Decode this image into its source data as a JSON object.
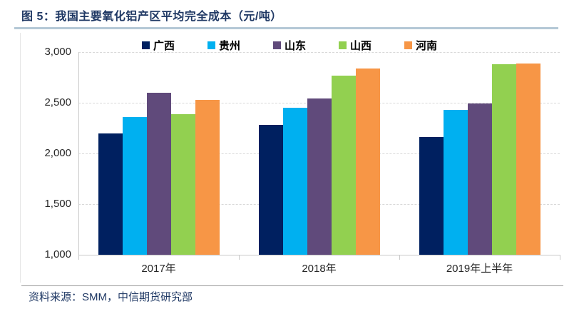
{
  "header": {
    "title": "图 5：我国主要氧化铝产区平均完全成本（元/吨）"
  },
  "footer": {
    "source": "资料来源：SMM，中信期货研究部"
  },
  "chart_data": {
    "type": "bar",
    "title": "我国主要氧化铝产区平均完全成本（元/吨）",
    "categories": [
      "2017年",
      "2018年",
      "2019年上半年"
    ],
    "series": [
      {
        "name": "广西",
        "color": "#002060",
        "values": [
          2200,
          2280,
          2160
        ]
      },
      {
        "name": "贵州",
        "color": "#00B0F0",
        "values": [
          2360,
          2450,
          2430
        ]
      },
      {
        "name": "山东",
        "color": "#604A7B",
        "values": [
          2600,
          2540,
          2490
        ]
      },
      {
        "name": "山西",
        "color": "#92D050",
        "values": [
          2390,
          2770,
          2880
        ]
      },
      {
        "name": "河南",
        "color": "#F79646",
        "values": [
          2530,
          2840,
          2890
        ]
      }
    ],
    "ylim": [
      1000,
      3000
    ],
    "yticks": [
      1000,
      1500,
      2000,
      2500,
      3000
    ],
    "ytick_labels": [
      "1,000",
      "1,500",
      "2,000",
      "2,500",
      "3,000"
    ],
    "xlabel": "",
    "ylabel": "",
    "grid": "horizontal, dash-dot, gridlines above baseline only",
    "legend_position": "top-center",
    "accent_colors": {
      "title_text": "#1f3864",
      "title_underline": "#b4c8d6",
      "axis_line": "#c9c9c9",
      "gridline": "#d9d9d9",
      "tick_label_text": "#262626",
      "source_rule": "#9a9a9a"
    }
  }
}
